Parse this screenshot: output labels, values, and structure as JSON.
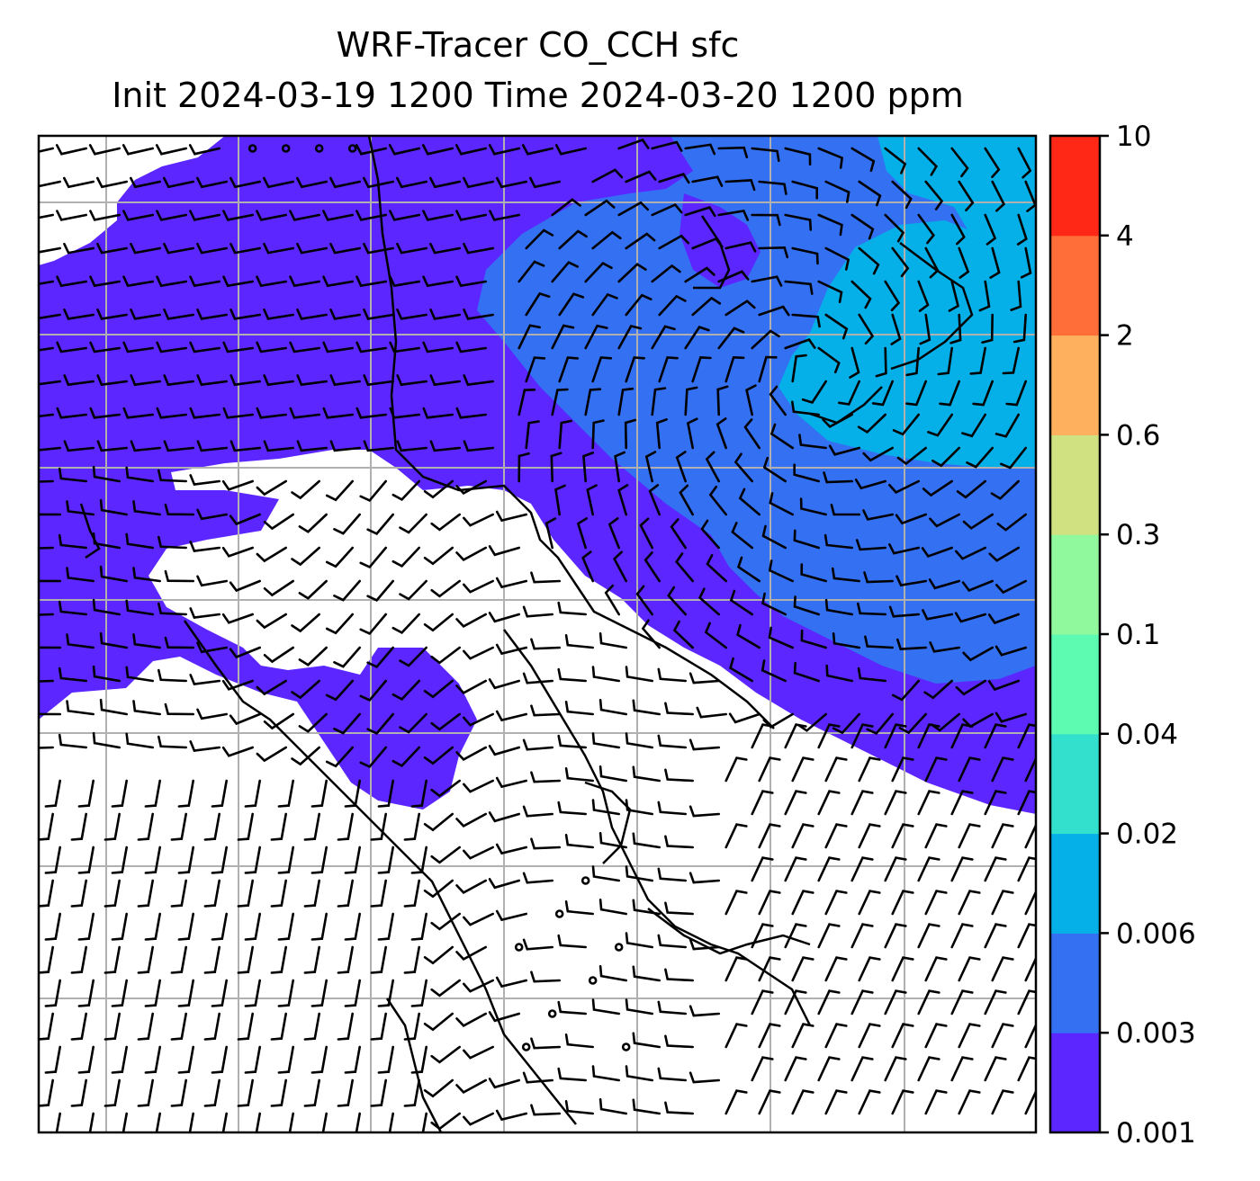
{
  "title": {
    "line1": "WRF-Tracer CO_CCH sfc",
    "line2": "Init 2024-03-19 1200 Time 2024-03-20 1200 ppm"
  },
  "colorbar": {
    "levels": [
      "0.001",
      "0.003",
      "0.006",
      "0.02",
      "0.04",
      "0.1",
      "0.3",
      "0.6",
      "2",
      "4",
      "10"
    ],
    "colors": [
      "#5b26ff",
      "#3470f2",
      "#05b0e8",
      "#33e0cd",
      "#5dfbb2",
      "#90f89d",
      "#cfe180",
      "#ffb05e",
      "#ff6d39",
      "#ff2816"
    ]
  },
  "map": {
    "field_colors": {
      "band_0_001": "#5b26ff",
      "band_0_003": "#3470f2",
      "band_0_006": "#05b0e8",
      "below_min": "#ffffff"
    },
    "overlays": [
      "wind-barbs",
      "coastlines",
      "lat-lon-gridlines"
    ],
    "grid_color": "#b0b0b0"
  }
}
